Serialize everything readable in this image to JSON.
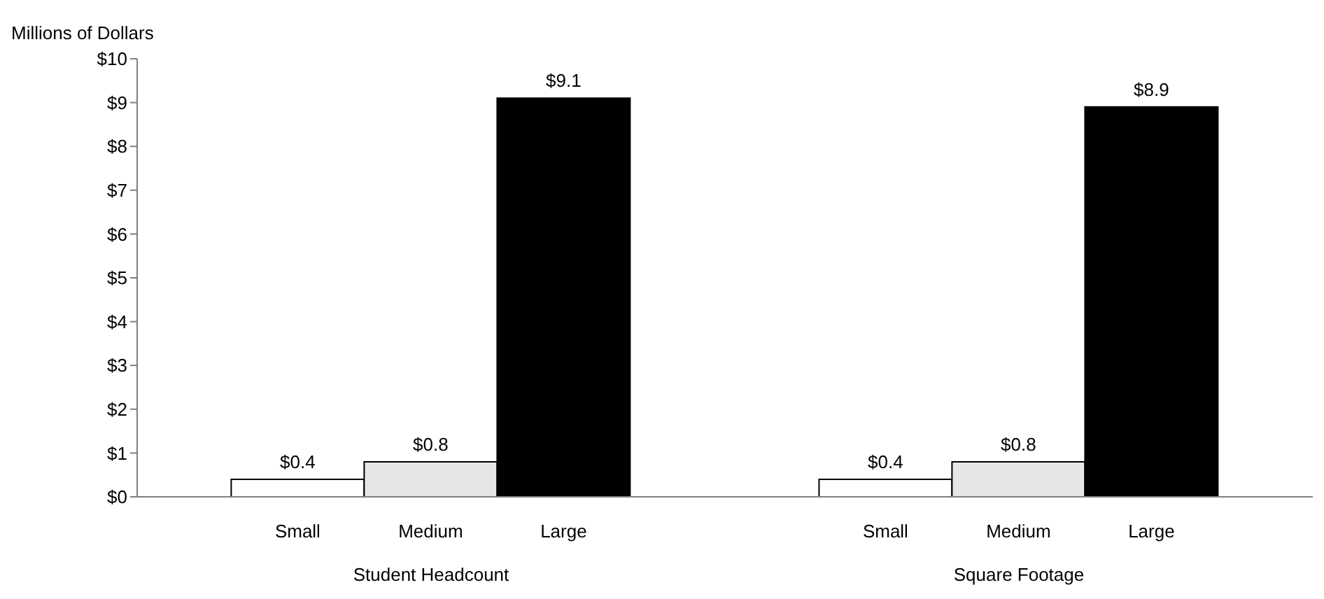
{
  "chart_data": {
    "type": "bar",
    "ylabel": "Millions of Dollars",
    "categories": [
      "Student Headcount",
      "Square Footage"
    ],
    "series": [
      {
        "name": "Small",
        "color": "#ffffff",
        "values": [
          0.4,
          0.4
        ],
        "value_labels": [
          "$0.4",
          "$0.4"
        ]
      },
      {
        "name": "Medium",
        "color": "#e6e6e6",
        "values": [
          0.8,
          0.8
        ],
        "value_labels": [
          "$0.8",
          "$0.8"
        ]
      },
      {
        "name": "Large",
        "color": "#000000",
        "values": [
          9.1,
          8.9
        ],
        "value_labels": [
          "$9.1",
          "$8.9"
        ]
      }
    ],
    "ylim": [
      0,
      10
    ],
    "yticks": [
      {
        "value": 0,
        "label": "$0"
      },
      {
        "value": 1,
        "label": "$1"
      },
      {
        "value": 2,
        "label": "$2"
      },
      {
        "value": 3,
        "label": "$3"
      },
      {
        "value": 4,
        "label": "$4"
      },
      {
        "value": 5,
        "label": "$5"
      },
      {
        "value": 6,
        "label": "$6"
      },
      {
        "value": 7,
        "label": "$7"
      },
      {
        "value": 8,
        "label": "$8"
      },
      {
        "value": 9,
        "label": "$9"
      },
      {
        "value": 10,
        "label": "$10"
      }
    ],
    "grid": false,
    "legend": false
  }
}
